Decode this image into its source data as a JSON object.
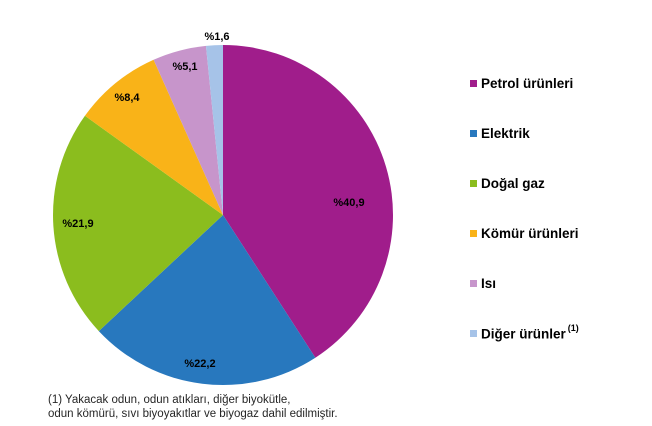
{
  "chart_data": {
    "type": "pie",
    "start_angle_deg": 0,
    "direction": "clockwise",
    "legend_position": "right",
    "series": [
      {
        "name": "Petrol ürünleri",
        "value": 40.9,
        "label": "%40,9",
        "color": "#A01D8B"
      },
      {
        "name": "Elektrik",
        "value": 22.2,
        "label": "%22,2",
        "color": "#2878BE"
      },
      {
        "name": "Doğal gaz",
        "value": 21.9,
        "label": "%21,9",
        "color": "#8BBD1E"
      },
      {
        "name": "Kömür ürünleri",
        "value": 8.4,
        "label": "%8,4",
        "color": "#F9B318"
      },
      {
        "name": "Isı",
        "value": 5.1,
        "label": "%5,1",
        "color": "#C795CB"
      },
      {
        "name": "Diğer ürünler",
        "value": 1.6,
        "label": "%1,6",
        "color": "#A6C3E8",
        "legend_superscript": "(1)"
      }
    ]
  },
  "footnote": {
    "line1": "(1) Yakacak odun, odun atıkları, diğer biyokütle,",
    "line2": "odun kömürü, sıvı biyoyakıtlar ve biyogaz dahil edilmiştir."
  }
}
